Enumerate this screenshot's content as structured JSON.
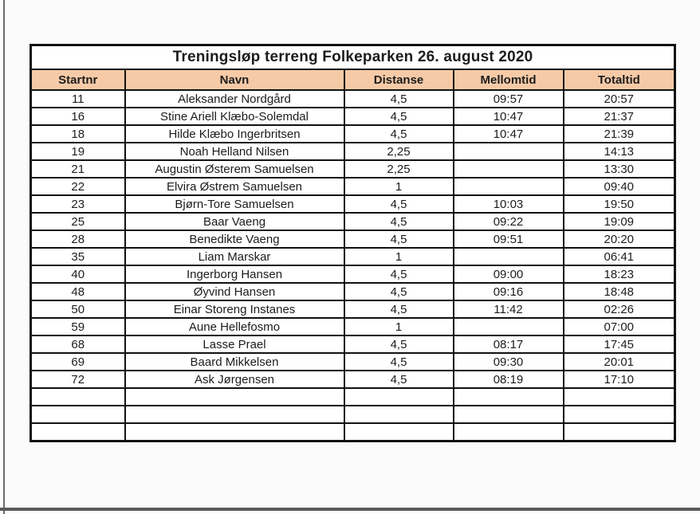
{
  "page": {
    "background": "#fbfbfb",
    "frame_color": "#5a5a5a"
  },
  "table": {
    "title": "Treningsløp terreng Folkeparken 26. august 2020",
    "header_bg": "#f6caa6",
    "border_color": "#111111",
    "columns": [
      "Startnr",
      "Navn",
      "Distanse",
      "Mellomtid",
      "Totaltid"
    ],
    "rows": [
      [
        "11",
        "Aleksander Nordgård",
        "4,5",
        "09:57",
        "20:57"
      ],
      [
        "16",
        "Stine Ariell Klæbo-Solemdal",
        "4,5",
        "10:47",
        "21:37"
      ],
      [
        "18",
        "Hilde Klæbo Ingerbritsen",
        "4,5",
        "10:47",
        "21:39"
      ],
      [
        "19",
        "Noah Helland Nilsen",
        "2,25",
        "",
        "14:13"
      ],
      [
        "21",
        "Augustin Østerem Samuelsen",
        "2,25",
        "",
        "13:30"
      ],
      [
        "22",
        "Elvira Østrem Samuelsen",
        "1",
        "",
        "09:40"
      ],
      [
        "23",
        "Bjørn-Tore Samuelsen",
        "4,5",
        "10:03",
        "19:50"
      ],
      [
        "25",
        "Baar Vaeng",
        "4,5",
        "09:22",
        "19:09"
      ],
      [
        "28",
        "Benedikte Vaeng",
        "4,5",
        "09:51",
        "20:20"
      ],
      [
        "35",
        "Liam Marskar",
        "1",
        "",
        "06:41"
      ],
      [
        "40",
        "Ingerborg Hansen",
        "4,5",
        "09:00",
        "18:23"
      ],
      [
        "48",
        "Øyvind Hansen",
        "4,5",
        "09:16",
        "18:48"
      ],
      [
        "50",
        "Einar Storeng Instanes",
        "4,5",
        "11:42",
        "02:26"
      ],
      [
        "59",
        "Aune Hellefosmo",
        "1",
        "",
        "07:00"
      ],
      [
        "68",
        "Lasse Prael",
        "4,5",
        "08:17",
        "17:45"
      ],
      [
        "69",
        "Baard Mikkelsen",
        "4,5",
        "09:30",
        "20:01"
      ],
      [
        "72",
        "Ask Jørgensen",
        "4,5",
        "08:19",
        "17:10"
      ],
      [
        "",
        "",
        "",
        "",
        ""
      ],
      [
        "",
        "",
        "",
        "",
        ""
      ],
      [
        "",
        "",
        "",
        "",
        ""
      ]
    ]
  }
}
